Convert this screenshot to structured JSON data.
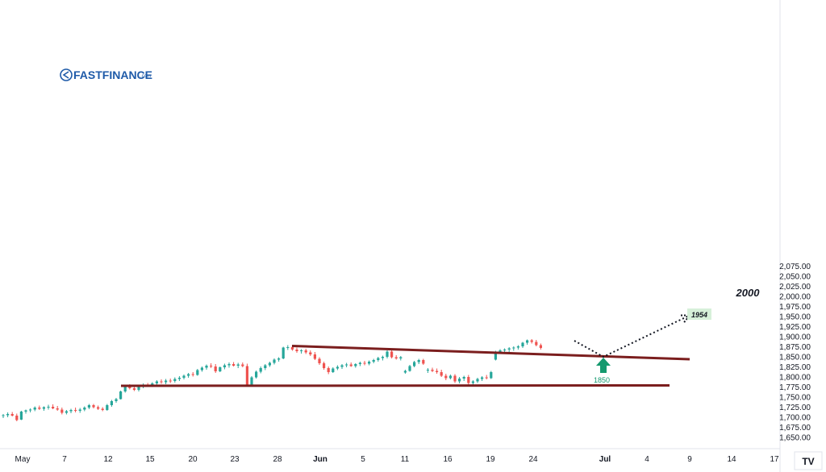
{
  "brand": {
    "name": "FASTFINANCE",
    "suffix": ".com"
  },
  "tv_badge": "TV",
  "chart_data": {
    "type": "candlestick",
    "colors": {
      "up": "#26a69a",
      "down": "#ef5350",
      "trendline": "#7b1e1e",
      "projection": "#131722",
      "arrow": "#14996e",
      "target_bg": "#d6f0d9"
    },
    "y_axis": {
      "ticks": [
        "1,650.00",
        "1,675.00",
        "1,700.00",
        "1,725.00",
        "1,750.00",
        "1,775.00",
        "1,800.00",
        "1,825.00",
        "1,850.00",
        "1,875.00",
        "1,900.00",
        "1,925.00",
        "1,950.00",
        "1,975.00",
        "2,000.00",
        "2,025.00",
        "2,050.00",
        "2,075.00"
      ],
      "range": [
        1650,
        2080
      ]
    },
    "x_axis": {
      "ticks": [
        "May",
        "7",
        "12",
        "15",
        "20",
        "23",
        "28",
        "Jun",
        "5",
        "11",
        "16",
        "19",
        "24",
        "Jul",
        "4",
        "9",
        "14",
        "17"
      ],
      "ticks_bold": [
        "Jun",
        "Jul"
      ]
    },
    "annotations": {
      "level_2000": "2000",
      "target_1954": "1954",
      "support_label": "1850"
    },
    "trendlines": {
      "upper": {
        "from": [
          "May 28",
          1877
        ],
        "to": [
          "Jul 8",
          1844
        ]
      },
      "lower": {
        "from": [
          "May 13",
          1778
        ],
        "to": [
          "Jul 7",
          1779
        ]
      }
    },
    "projection": [
      [
        "Jun 28",
        1890
      ],
      [
        "Jul 1",
        1850
      ],
      [
        "Jul 8",
        1953
      ]
    ],
    "candles": [
      [
        1703,
        1708,
        1698,
        1705
      ],
      [
        1705,
        1712,
        1700,
        1708
      ],
      [
        1708,
        1713,
        1702,
        1704
      ],
      [
        1704,
        1709,
        1690,
        1693
      ],
      [
        1694,
        1716,
        1693,
        1714
      ],
      [
        1714,
        1719,
        1709,
        1717
      ],
      [
        1717,
        1722,
        1712,
        1719
      ],
      [
        1719,
        1727,
        1715,
        1724
      ],
      [
        1724,
        1729,
        1718,
        1721
      ],
      [
        1721,
        1727,
        1716,
        1725
      ],
      [
        1725,
        1731,
        1719,
        1726
      ],
      [
        1726,
        1732,
        1720,
        1722
      ],
      [
        1722,
        1728,
        1716,
        1719
      ],
      [
        1719,
        1724,
        1707,
        1711
      ],
      [
        1711,
        1718,
        1707,
        1715
      ],
      [
        1715,
        1721,
        1710,
        1718
      ],
      [
        1718,
        1724,
        1712,
        1716
      ],
      [
        1716,
        1723,
        1711,
        1719
      ],
      [
        1719,
        1727,
        1715,
        1724
      ],
      [
        1724,
        1733,
        1720,
        1730
      ],
      [
        1730,
        1733,
        1722,
        1725
      ],
      [
        1725,
        1729,
        1718,
        1721
      ],
      [
        1721,
        1725,
        1715,
        1718
      ],
      [
        1718,
        1733,
        1716,
        1730
      ],
      [
        1730,
        1743,
        1726,
        1740
      ],
      [
        1740,
        1748,
        1736,
        1745
      ],
      [
        1745,
        1766,
        1744,
        1764
      ],
      [
        1764,
        1778,
        1761,
        1775
      ],
      [
        1775,
        1782,
        1769,
        1772
      ],
      [
        1772,
        1780,
        1765,
        1768
      ],
      [
        1768,
        1778,
        1764,
        1776
      ],
      [
        1776,
        1784,
        1772,
        1781
      ],
      [
        1781,
        1785,
        1776,
        1779
      ],
      [
        1779,
        1787,
        1775,
        1784
      ],
      [
        1784,
        1792,
        1780,
        1789
      ],
      [
        1789,
        1794,
        1783,
        1787
      ],
      [
        1787,
        1795,
        1782,
        1791
      ],
      [
        1791,
        1796,
        1785,
        1790
      ],
      [
        1790,
        1799,
        1786,
        1795
      ],
      [
        1795,
        1802,
        1790,
        1798
      ],
      [
        1798,
        1806,
        1794,
        1803
      ],
      [
        1803,
        1810,
        1798,
        1807
      ],
      [
        1807,
        1812,
        1801,
        1805
      ],
      [
        1805,
        1820,
        1803,
        1817
      ],
      [
        1817,
        1826,
        1813,
        1823
      ],
      [
        1823,
        1831,
        1818,
        1828
      ],
      [
        1828,
        1834,
        1822,
        1826
      ],
      [
        1826,
        1832,
        1810,
        1814
      ],
      [
        1814,
        1826,
        1812,
        1824
      ],
      [
        1824,
        1833,
        1819,
        1829
      ],
      [
        1829,
        1836,
        1823,
        1832
      ],
      [
        1832,
        1837,
        1826,
        1828
      ],
      [
        1828,
        1835,
        1822,
        1831
      ],
      [
        1831,
        1836,
        1824,
        1827
      ],
      [
        1827,
        1833,
        1776,
        1781
      ],
      [
        1781,
        1802,
        1780,
        1799
      ],
      [
        1799,
        1816,
        1796,
        1813
      ],
      [
        1813,
        1826,
        1809,
        1822
      ],
      [
        1822,
        1832,
        1817,
        1829
      ],
      [
        1829,
        1838,
        1825,
        1835
      ],
      [
        1835,
        1846,
        1831,
        1843
      ],
      [
        1843,
        1849,
        1838,
        1846
      ],
      [
        1846,
        1875,
        1844,
        1873
      ],
      [
        1873,
        1879,
        1867,
        1874
      ],
      [
        1874,
        1877,
        1865,
        1868
      ],
      [
        1868,
        1873,
        1860,
        1864
      ],
      [
        1864,
        1869,
        1858,
        1866
      ],
      [
        1866,
        1870,
        1857,
        1861
      ],
      [
        1861,
        1866,
        1852,
        1856
      ],
      [
        1856,
        1862,
        1842,
        1845
      ],
      [
        1845,
        1849,
        1830,
        1834
      ],
      [
        1834,
        1838,
        1818,
        1822
      ],
      [
        1822,
        1826,
        1807,
        1812
      ],
      [
        1812,
        1824,
        1810,
        1821
      ],
      [
        1821,
        1829,
        1817,
        1825
      ],
      [
        1825,
        1832,
        1820,
        1829
      ],
      [
        1829,
        1835,
        1824,
        1831
      ],
      [
        1831,
        1836,
        1825,
        1827
      ],
      [
        1827,
        1834,
        1823,
        1832
      ],
      [
        1832,
        1838,
        1827,
        1835
      ],
      [
        1835,
        1840,
        1829,
        1833
      ],
      [
        1833,
        1841,
        1829,
        1838
      ],
      [
        1838,
        1845,
        1834,
        1842
      ],
      [
        1842,
        1850,
        1838,
        1847
      ],
      [
        1847,
        1853,
        1841,
        1850
      ],
      [
        1850,
        1866,
        1846,
        1863
      ],
      [
        1863,
        1866,
        1846,
        1849
      ],
      [
        1849,
        1854,
        1843,
        1846
      ],
      [
        1846,
        1852,
        1841,
        1849
      ],
      [
        1811,
        1818,
        1808,
        1815
      ],
      [
        1815,
        1830,
        1813,
        1827
      ],
      [
        1827,
        1840,
        1824,
        1837
      ],
      [
        1837,
        1845,
        1832,
        1842
      ],
      [
        1842,
        1845,
        1830,
        1833
      ],
      [
        1816,
        1822,
        1810,
        1818
      ],
      [
        1818,
        1823,
        1812,
        1815
      ],
      [
        1815,
        1821,
        1808,
        1812
      ],
      [
        1812,
        1818,
        1800,
        1803
      ],
      [
        1803,
        1808,
        1792,
        1797
      ],
      [
        1797,
        1806,
        1794,
        1803
      ],
      [
        1803,
        1807,
        1785,
        1789
      ],
      [
        1789,
        1800,
        1784,
        1796
      ],
      [
        1796,
        1803,
        1790,
        1800
      ],
      [
        1800,
        1805,
        1781,
        1785
      ],
      [
        1785,
        1792,
        1780,
        1789
      ],
      [
        1789,
        1798,
        1785,
        1795
      ],
      [
        1795,
        1802,
        1790,
        1799
      ],
      [
        1799,
        1805,
        1794,
        1797
      ],
      [
        1797,
        1815,
        1795,
        1812
      ],
      [
        1843,
        1865,
        1841,
        1862
      ],
      [
        1862,
        1869,
        1857,
        1866
      ],
      [
        1866,
        1871,
        1860,
        1868
      ],
      [
        1868,
        1874,
        1862,
        1871
      ],
      [
        1871,
        1876,
        1865,
        1873
      ],
      [
        1873,
        1879,
        1868,
        1876
      ],
      [
        1876,
        1887,
        1872,
        1885
      ],
      [
        1885,
        1893,
        1880,
        1891
      ],
      [
        1891,
        1894,
        1883,
        1887
      ],
      [
        1887,
        1892,
        1876,
        1879
      ],
      [
        1879,
        1883,
        1868,
        1872
      ]
    ]
  }
}
